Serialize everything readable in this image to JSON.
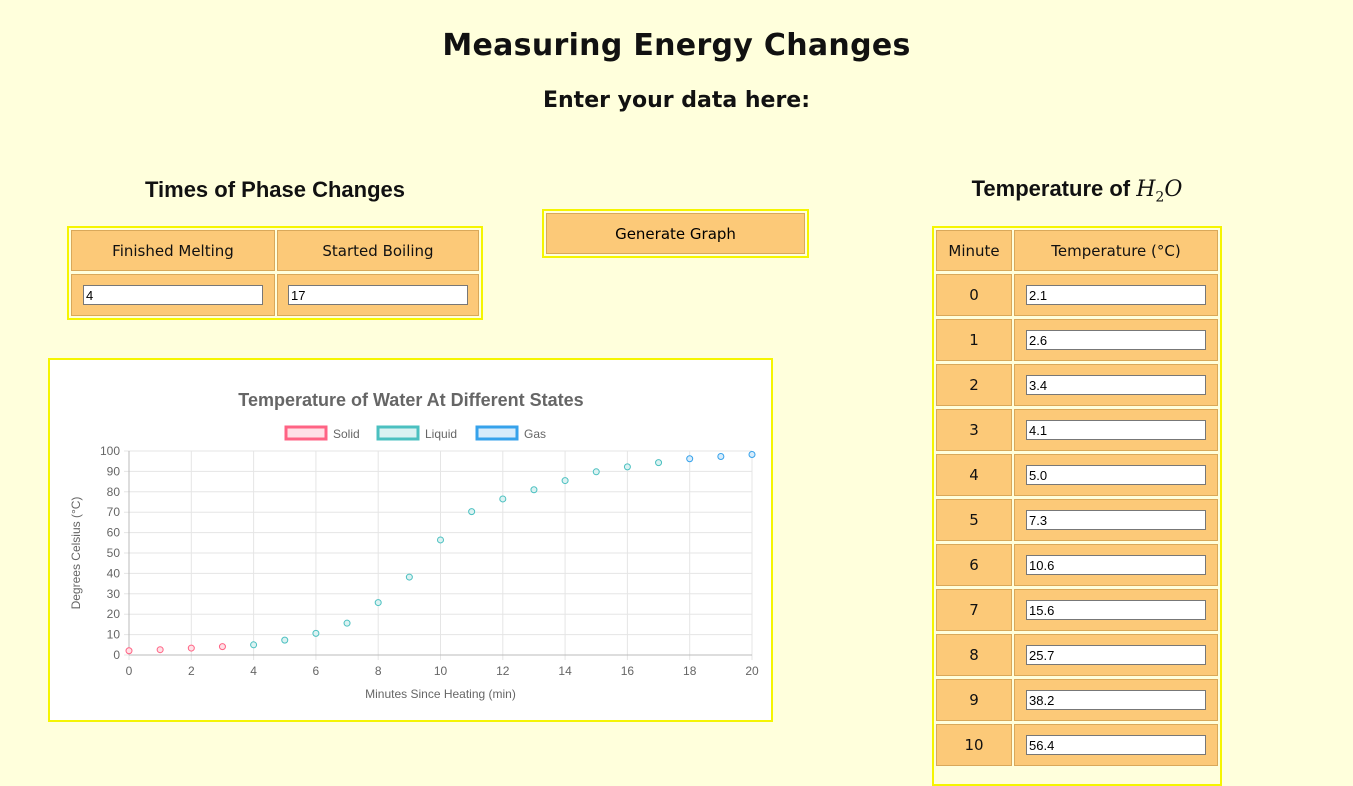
{
  "page": {
    "title": "Measuring Energy Changes",
    "subtitle": "Enter your data here:"
  },
  "phase": {
    "title": "Times of Phase Changes",
    "headers": [
      "Finished Melting",
      "Started Boiling"
    ],
    "values": [
      "4",
      "17"
    ]
  },
  "generate_button": "Generate Graph",
  "temperature": {
    "title_prefix": "Temperature of ",
    "formula_main": "H",
    "formula_sub": "2",
    "formula_end": "O",
    "headers": [
      "Minute",
      "Temperature (°C)"
    ],
    "rows": [
      {
        "minute": "0",
        "temp": "2.1"
      },
      {
        "minute": "1",
        "temp": "2.6"
      },
      {
        "minute": "2",
        "temp": "3.4"
      },
      {
        "minute": "3",
        "temp": "4.1"
      },
      {
        "minute": "4",
        "temp": "5.0"
      },
      {
        "minute": "5",
        "temp": "7.3"
      },
      {
        "minute": "6",
        "temp": "10.6"
      },
      {
        "minute": "7",
        "temp": "15.6"
      },
      {
        "minute": "8",
        "temp": "25.7"
      },
      {
        "minute": "9",
        "temp": "38.2"
      },
      {
        "minute": "10",
        "temp": "56.4"
      }
    ]
  },
  "chart_data": {
    "type": "scatter",
    "title": "Temperature of Water At Different States",
    "xlabel": "Minutes Since Heating (min)",
    "ylabel": "Degrees Celsius (°C)",
    "xlim": [
      0,
      20
    ],
    "ylim": [
      0,
      100
    ],
    "x_ticks": [
      0,
      2,
      4,
      6,
      8,
      10,
      12,
      14,
      16,
      18,
      20
    ],
    "y_ticks": [
      0,
      10,
      20,
      30,
      40,
      50,
      60,
      70,
      80,
      90,
      100
    ],
    "grid": true,
    "legend_position": "top",
    "series": [
      {
        "name": "Solid",
        "color": "#ff6384",
        "fill": "#ffe0e6",
        "points": [
          [
            0,
            2.1
          ],
          [
            1,
            2.6
          ],
          [
            2,
            3.4
          ],
          [
            3,
            4.1
          ]
        ]
      },
      {
        "name": "Liquid",
        "color": "#4bc0c0",
        "fill": "#dbf2f2",
        "points": [
          [
            4,
            5.0
          ],
          [
            5,
            7.3
          ],
          [
            6,
            10.6
          ],
          [
            7,
            15.6
          ],
          [
            8,
            25.7
          ],
          [
            9,
            38.2
          ],
          [
            10,
            56.4
          ],
          [
            11,
            70.3
          ],
          [
            12,
            76.5
          ],
          [
            13,
            81.0
          ],
          [
            14,
            85.5
          ],
          [
            15,
            89.8
          ],
          [
            16,
            92.2
          ],
          [
            17,
            94.3
          ]
        ]
      },
      {
        "name": "Gas",
        "color": "#36a2eb",
        "fill": "#d7ecfb",
        "points": [
          [
            18,
            96.2
          ],
          [
            19,
            97.3
          ],
          [
            20,
            98.3
          ]
        ]
      }
    ]
  }
}
